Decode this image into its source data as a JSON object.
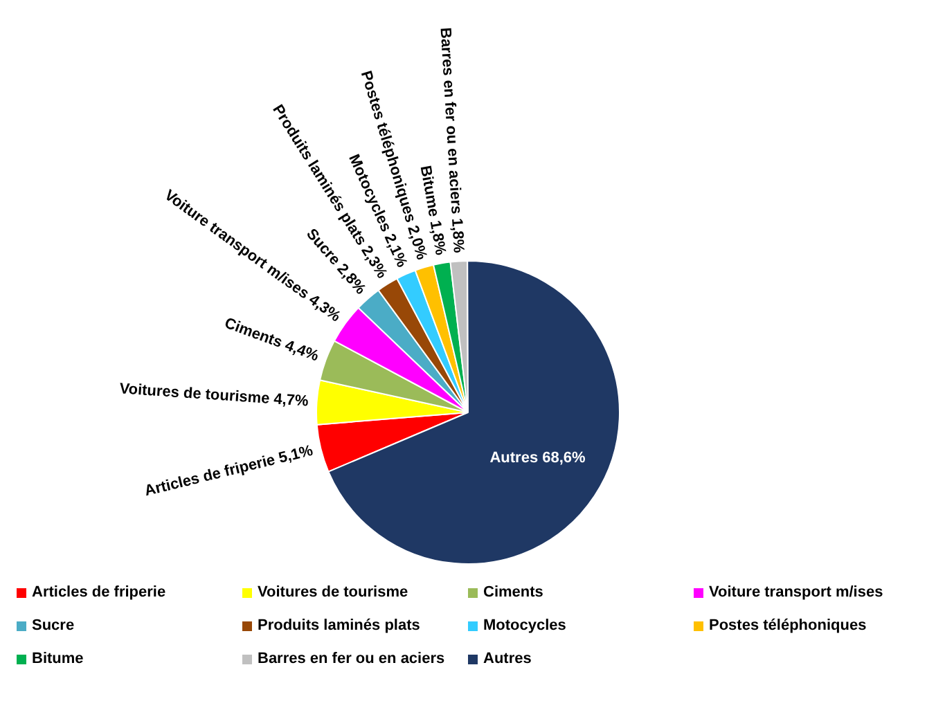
{
  "chart_data": {
    "type": "pie",
    "categories": [
      "Articles de friperie",
      "Voitures de tourisme",
      "Ciments",
      "Voiture transport m/ises",
      "Sucre",
      "Produits laminés plats",
      "Motocycles",
      "Postes téléphoniques",
      "Bitume",
      "Barres en fer ou en aciers",
      "Autres"
    ],
    "values": [
      5.1,
      4.7,
      4.4,
      4.3,
      2.8,
      2.3,
      2.1,
      2.0,
      1.8,
      1.8,
      68.6
    ],
    "colors": [
      "#ff0000",
      "#ffff00",
      "#9bbb59",
      "#ff00ff",
      "#4bacc6",
      "#984807",
      "#33ccff",
      "#ffc000",
      "#00b050",
      "#c0c0c0",
      "#1f3864"
    ],
    "value_labels": [
      "Articles de friperie 5,1%",
      "Voitures de tourisme 4,7%",
      "Ciments 4,4%",
      "Voiture transport m/ises 4,3%",
      "Sucre 2,8%",
      "Produits laminés plats 2,3%",
      "Motocycles 2,1%",
      "Postes téléphoniques 2,0%",
      "Bitume 1,8%",
      "Barres en fer ou en aciers 1,8%",
      "Autres 68,6%"
    ],
    "legend": "bottom"
  }
}
